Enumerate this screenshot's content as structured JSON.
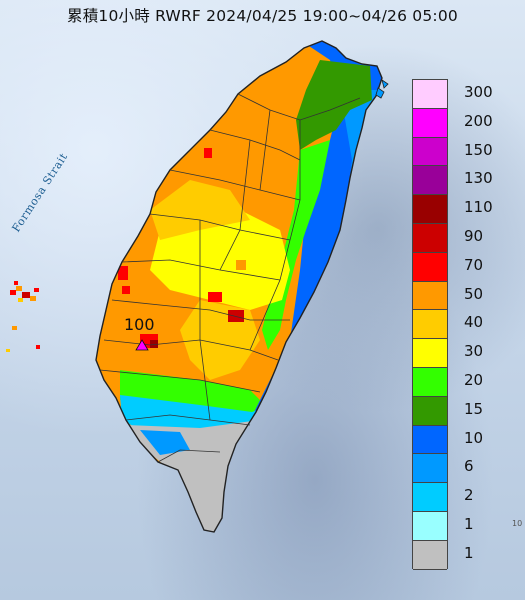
{
  "title": "累積10小時 RWRF 2024/04/25 19:00~04/26 05:00",
  "strait_label": "Formosa Strait",
  "peak_label": "100",
  "scale_edge_label": "10",
  "legend": {
    "items": [
      {
        "label": "300",
        "color": "#ffccff"
      },
      {
        "label": "200",
        "color": "#ff00ff"
      },
      {
        "label": "150",
        "color": "#cc00cc"
      },
      {
        "label": "130",
        "color": "#990099"
      },
      {
        "label": "110",
        "color": "#990000"
      },
      {
        "label": "90",
        "color": "#cc0000"
      },
      {
        "label": "70",
        "color": "#ff0000"
      },
      {
        "label": "50",
        "color": "#ff9900"
      },
      {
        "label": "40",
        "color": "#ffcc00"
      },
      {
        "label": "30",
        "color": "#ffff00"
      },
      {
        "label": "20",
        "color": "#33ff00"
      },
      {
        "label": "15",
        "color": "#339900"
      },
      {
        "label": "10",
        "color": "#0066ff"
      },
      {
        "label": "6",
        "color": "#0099ff"
      },
      {
        "label": "2",
        "color": "#00ccff"
      },
      {
        "label": "1",
        "color": "#99ffff"
      },
      {
        "label": "",
        "color": "#c0c0c0"
      }
    ]
  },
  "legend_bottom_label": "1"
}
